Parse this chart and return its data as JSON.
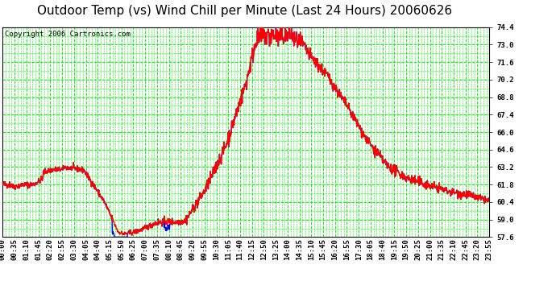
{
  "title": "Outdoor Temp (vs) Wind Chill per Minute (Last 24 Hours) 20060626",
  "copyright": "Copyright 2006 Cartronics.com",
  "bg_color": "#ffffff",
  "plot_bg_color": "#ffffff",
  "grid_color": "#00ff00",
  "line_color": "#ff0000",
  "wind_chill_color": "#0000ff",
  "ylim": [
    57.6,
    74.4
  ],
  "yticks": [
    57.6,
    59.0,
    60.4,
    61.8,
    63.2,
    64.6,
    66.0,
    67.4,
    68.8,
    70.2,
    71.6,
    73.0,
    74.4
  ],
  "xtick_labels": [
    "00:00",
    "00:35",
    "01:10",
    "01:45",
    "02:20",
    "02:55",
    "03:30",
    "04:05",
    "04:40",
    "05:15",
    "05:50",
    "06:25",
    "07:00",
    "07:35",
    "08:10",
    "08:45",
    "09:20",
    "09:55",
    "10:30",
    "11:05",
    "11:40",
    "12:15",
    "12:50",
    "13:25",
    "14:00",
    "14:35",
    "15:10",
    "15:45",
    "16:20",
    "16:55",
    "17:30",
    "18:05",
    "18:40",
    "19:15",
    "19:50",
    "20:25",
    "21:00",
    "21:35",
    "22:10",
    "22:45",
    "23:20",
    "23:55"
  ],
  "title_fontsize": 11,
  "tick_fontsize": 6.5,
  "copyright_fontsize": 6.5,
  "line_width": 1.0
}
